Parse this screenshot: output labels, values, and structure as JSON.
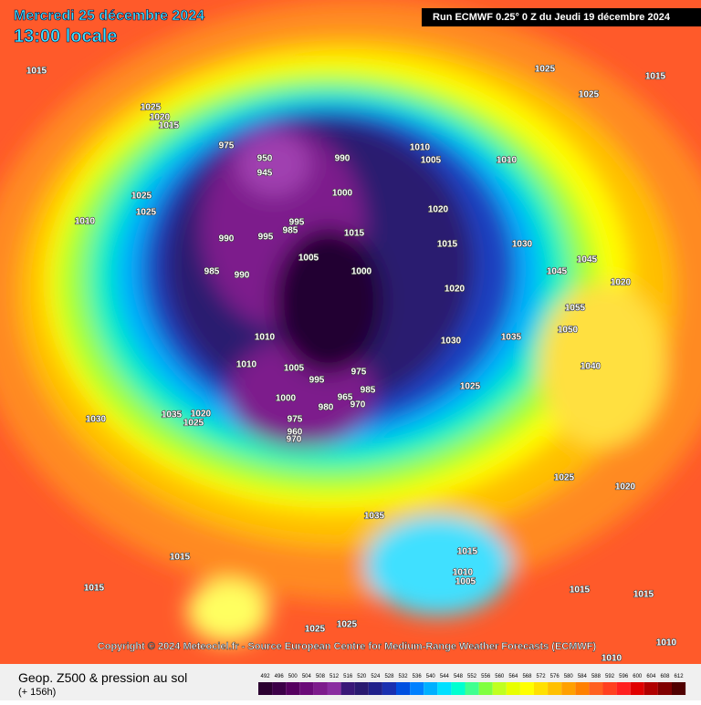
{
  "header": {
    "date": "Mercredi 25 décembre 2024",
    "time": "13:00 locale",
    "run": "Run ECMWF 0.25° 0 Z du Jeudi 19 décembre 2024"
  },
  "copyright": "Copyright © 2024 Meteociel.fr - Source European Centre for Medium-Range Weather Forecasts (ECMWF)",
  "footer": {
    "title": "Geop. Z500 & pression au sol",
    "lead": "(+ 156h)"
  },
  "legend": {
    "values": [
      492,
      496,
      500,
      504,
      508,
      512,
      516,
      520,
      524,
      528,
      532,
      536,
      540,
      544,
      548,
      552,
      556,
      560,
      564,
      568,
      572,
      576,
      580,
      584,
      588,
      592,
      596,
      600,
      604,
      608,
      612
    ],
    "colors": [
      "#2b0030",
      "#3c0047",
      "#55005f",
      "#6a0a78",
      "#7d1b8c",
      "#8a2ca0",
      "#3a1878",
      "#2a1a70",
      "#20208a",
      "#1a30b0",
      "#0050e0",
      "#0080ff",
      "#00b0ff",
      "#00e0ff",
      "#00ffd0",
      "#40ff90",
      "#80ff40",
      "#c0ff20",
      "#e8ff00",
      "#ffff00",
      "#ffe000",
      "#ffc000",
      "#ffa000",
      "#ff8000",
      "#ff6020",
      "#ff4020",
      "#ff2020",
      "#e00000",
      "#b00000",
      "#800000",
      "#500000"
    ]
  },
  "pressure_labels": [
    "1015",
    "1025",
    "1015",
    "1025",
    "1025",
    "1020",
    "1015",
    "975",
    "950",
    "945",
    "990",
    "1010",
    "1005",
    "1010",
    "1000",
    "1025",
    "1025",
    "1010",
    "995",
    "985",
    "1015",
    "1020",
    "1015",
    "1030",
    "990",
    "995",
    "1005",
    "1000",
    "985",
    "990",
    "1045",
    "1045",
    "1020",
    "1020",
    "1055",
    "1010",
    "1030",
    "1035",
    "1050",
    "1005",
    "975",
    "995",
    "985",
    "965",
    "970",
    "1000",
    "980",
    "975",
    "960",
    "970",
    "1010",
    "1025",
    "1040",
    "1035",
    "1025",
    "1020",
    "1030",
    "1025",
    "1020",
    "1035",
    "1015",
    "1010",
    "1005",
    "1015",
    "1015",
    "1015",
    "1015",
    "1025",
    "1025",
    "1010",
    "1010"
  ]
}
